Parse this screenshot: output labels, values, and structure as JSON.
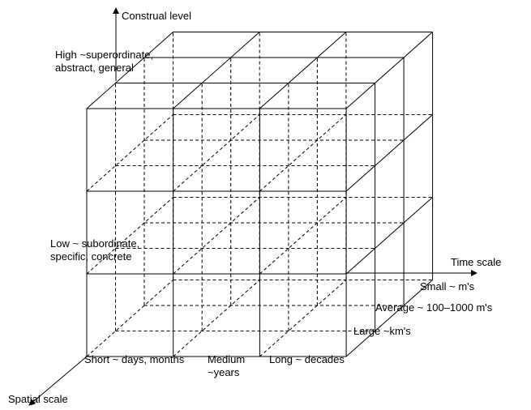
{
  "axes": {
    "vertical": "Construal level",
    "horizontal": "Time scale",
    "depth": "Spatial scale"
  },
  "construal_levels": [
    "High ~superordinate,\nabstract, general",
    "Low ~ subordinate,\nspecific, concrete"
  ],
  "time_levels": [
    "Short ~ days, months",
    "Medium\n~years",
    "Long ~ decades"
  ],
  "spatial_levels": [
    "Small ~ m's",
    "Average ~ 100–1000  m's",
    "Large ~km's"
  ]
}
